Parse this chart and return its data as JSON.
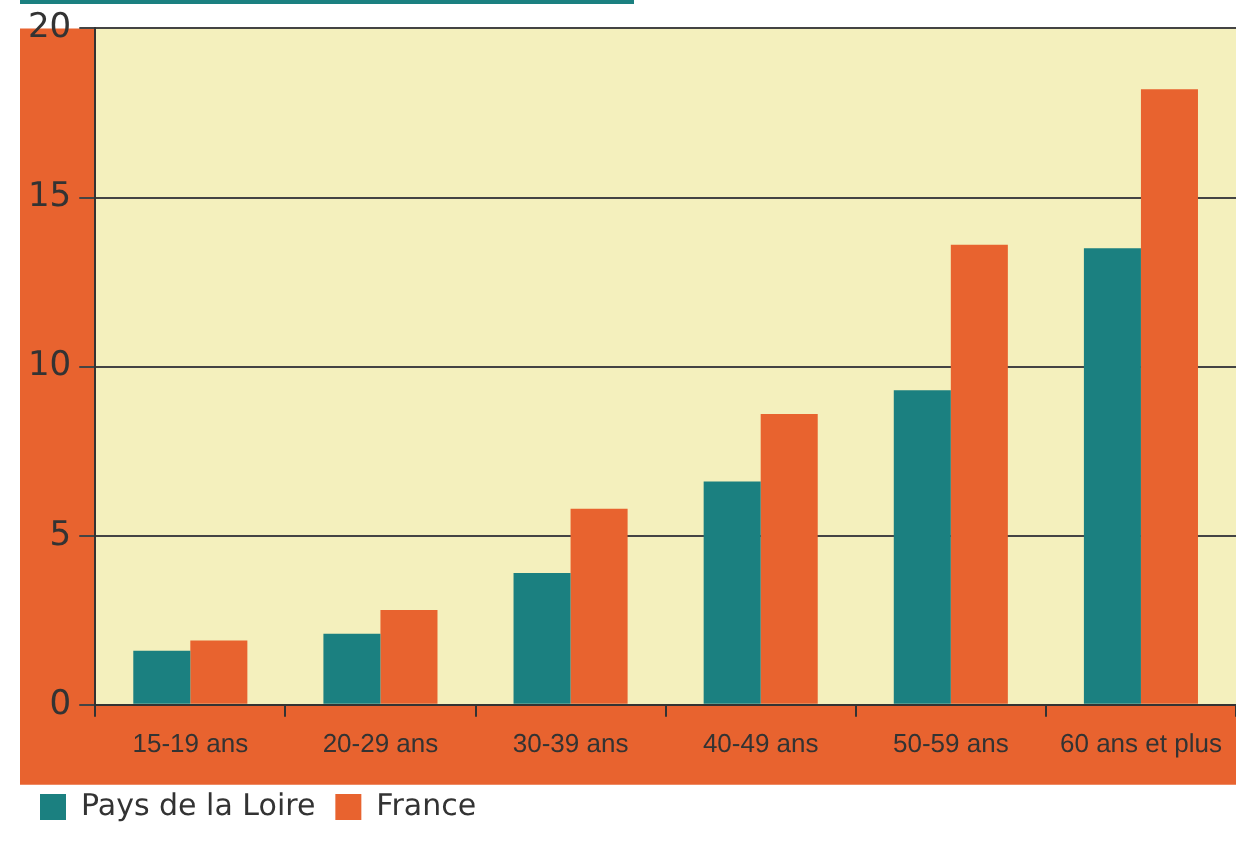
{
  "chart_data": {
    "type": "bar",
    "categories": [
      "15-19 ans",
      "20-29 ans",
      "30-39 ans",
      "40-49 ans",
      "50-59 ans",
      "60 ans et plus"
    ],
    "series": [
      {
        "name": "Pays de la Loire",
        "color": "#1b8080",
        "values": [
          1.6,
          2.1,
          3.9,
          6.6,
          9.3,
          13.5
        ]
      },
      {
        "name": "France",
        "color": "#e8632f",
        "values": [
          1.9,
          2.8,
          5.8,
          8.6,
          13.6,
          18.2
        ]
      }
    ],
    "ylim": [
      0,
      20
    ],
    "yticks": [
      0,
      5,
      10,
      15,
      20
    ],
    "grid": "y",
    "legend": "bottom left"
  }
}
